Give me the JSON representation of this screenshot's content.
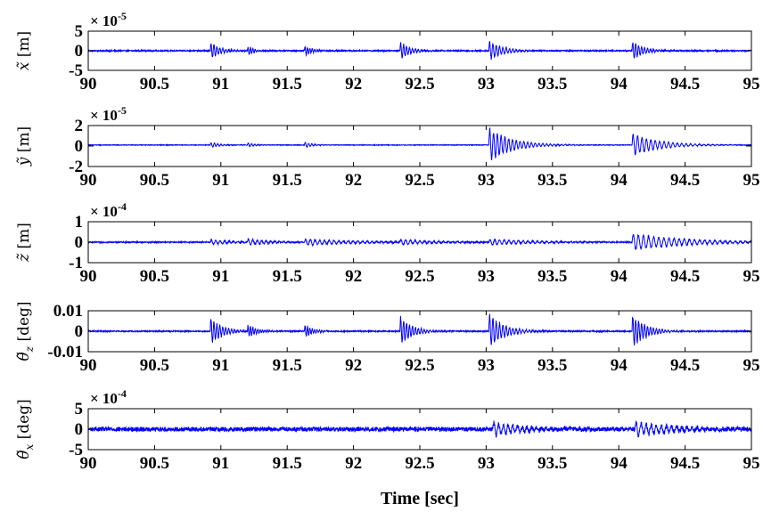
{
  "chart_data": {
    "type": "line",
    "xlabel": "Time [sec]",
    "xlim": [
      90,
      95
    ],
    "xticks": [
      90,
      90.5,
      91,
      91.5,
      92,
      92.5,
      93,
      93.5,
      94,
      94.5,
      95
    ],
    "xtick_labels": [
      "90",
      "90.5",
      "91",
      "91.5",
      "92",
      "92.5",
      "93",
      "93.5",
      "94",
      "94.5",
      "95"
    ],
    "line_color": "#0000ff",
    "grid": false,
    "subplots": [
      {
        "ylabel_sym": "x̃",
        "ylabel_unit": "[m]",
        "multiplier_base": "× 10",
        "multiplier_exp": "-5",
        "ylim": [
          -5,
          5
        ],
        "yticks": [
          -5,
          0,
          5
        ],
        "ytick_labels": [
          "-5",
          "0",
          "5"
        ],
        "baseline": 0,
        "noise": 0.15,
        "bursts": [
          {
            "t": 91.2,
            "amp": 1.4,
            "freq": 55,
            "decay": 20
          },
          {
            "t": 90.92,
            "amp": 2.5,
            "freq": 45,
            "decay": 14
          },
          {
            "t": 91.63,
            "amp": 1.5,
            "freq": 55,
            "decay": 18
          },
          {
            "t": 92.35,
            "amp": 2.6,
            "freq": 45,
            "decay": 14
          },
          {
            "t": 93.02,
            "amp": 2.8,
            "freq": 40,
            "decay": 10
          },
          {
            "t": 94.1,
            "amp": 2.8,
            "freq": 45,
            "decay": 12
          }
        ]
      },
      {
        "ylabel_sym": "ỹ",
        "ylabel_unit": "[m]",
        "multiplier_base": "× 10",
        "multiplier_exp": "-5",
        "ylim": [
          -2,
          2
        ],
        "yticks": [
          -2,
          0,
          2
        ],
        "ytick_labels": [
          "-2",
          "0",
          "2"
        ],
        "baseline": 0.1,
        "noise": 0.03,
        "bursts": [
          {
            "t": 91.2,
            "amp": 0.25,
            "freq": 40,
            "decay": 20
          },
          {
            "t": 90.92,
            "amp": 0.3,
            "freq": 40,
            "decay": 15
          },
          {
            "t": 91.63,
            "amp": 0.3,
            "freq": 40,
            "decay": 15
          },
          {
            "t": 93.02,
            "amp": 1.8,
            "freq": 35,
            "decay": 6
          },
          {
            "t": 94.1,
            "amp": 1.2,
            "freq": 30,
            "decay": 5
          }
        ]
      },
      {
        "ylabel_sym": "z̃",
        "ylabel_unit": "[m]",
        "multiplier_base": "× 10",
        "multiplier_exp": "-4",
        "ylim": [
          -1,
          1
        ],
        "yticks": [
          -1,
          0,
          1
        ],
        "ytick_labels": [
          "-1",
          "0",
          "1"
        ],
        "baseline": 0,
        "noise": 0.03,
        "bursts": [
          {
            "t": 91.2,
            "amp": 0.2,
            "freq": 30,
            "decay": 6
          },
          {
            "t": 90.92,
            "amp": 0.15,
            "freq": 30,
            "decay": 6
          },
          {
            "t": 91.63,
            "amp": 0.15,
            "freq": 28,
            "decay": 2
          },
          {
            "t": 92.35,
            "amp": 0.12,
            "freq": 28,
            "decay": 4
          },
          {
            "t": 93.02,
            "amp": 0.15,
            "freq": 28,
            "decay": 3
          },
          {
            "t": 94.1,
            "amp": 0.45,
            "freq": 26,
            "decay": 2.5
          }
        ]
      },
      {
        "ylabel_sym": "θ̃",
        "ylabel_sub": "z",
        "ylabel_unit": "[deg]",
        "ylim": [
          -0.01,
          0.01
        ],
        "yticks": [
          -0.01,
          0,
          0.01
        ],
        "ytick_labels": [
          "-0.01",
          "0",
          "0.01"
        ],
        "baseline": 0,
        "noise": 0.0003,
        "bursts": [
          {
            "t": 91.2,
            "amp": 0.0035,
            "freq": 55,
            "decay": 15
          },
          {
            "t": 90.92,
            "amp": 0.0075,
            "freq": 45,
            "decay": 12
          },
          {
            "t": 91.63,
            "amp": 0.0035,
            "freq": 55,
            "decay": 15
          },
          {
            "t": 92.35,
            "amp": 0.008,
            "freq": 45,
            "decay": 11
          },
          {
            "t": 93.02,
            "amp": 0.0095,
            "freq": 40,
            "decay": 9
          },
          {
            "t": 94.1,
            "amp": 0.009,
            "freq": 45,
            "decay": 10
          }
        ]
      },
      {
        "ylabel_sym": "θ̃",
        "ylabel_sub": "x",
        "ylabel_unit": "[deg]",
        "multiplier_base": "× 10",
        "multiplier_exp": "-4",
        "ylim": [
          -5,
          5
        ],
        "yticks": [
          -5,
          0,
          5
        ],
        "ytick_labels": [
          "-5",
          "0",
          "5"
        ],
        "baseline": 0,
        "noise": 0.55,
        "bursts": [
          {
            "t": 93.05,
            "amp": 1.8,
            "freq": 28,
            "decay": 4
          },
          {
            "t": 94.12,
            "amp": 2.0,
            "freq": 26,
            "decay": 3.5
          }
        ]
      }
    ]
  }
}
